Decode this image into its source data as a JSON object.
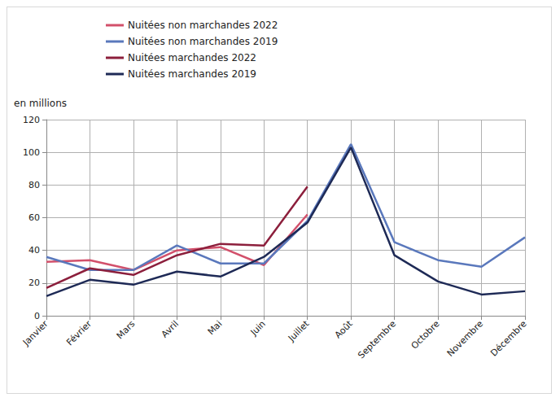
{
  "chart_data": {
    "type": "line",
    "y_label": "en millions",
    "categories": [
      "Janvier",
      "Février",
      "Mars",
      "Avril",
      "Mai",
      "Juin",
      "Juillet",
      "Août",
      "Septembre",
      "Octobre",
      "Novembre",
      "Décembre"
    ],
    "series": [
      {
        "name": "Nuitées non marchandes 2022",
        "color": "#d2506b",
        "values": [
          33,
          34,
          28,
          40,
          42,
          31,
          62,
          null,
          null,
          null,
          null,
          null
        ]
      },
      {
        "name": "Nuitées non marchandes 2019",
        "color": "#5a78bc",
        "values": [
          36,
          28,
          28,
          43,
          32,
          32,
          58,
          105,
          45,
          34,
          30,
          48
        ]
      },
      {
        "name": "Nuitées marchandes 2022",
        "color": "#8c1f3c",
        "values": [
          17,
          29,
          25,
          37,
          44,
          43,
          79,
          null,
          null,
          null,
          null,
          null
        ]
      },
      {
        "name": "Nuitées marchandes 2019",
        "color": "#1e2a56",
        "values": [
          12,
          22,
          19,
          27,
          24,
          36,
          57,
          103,
          37,
          21,
          13,
          15
        ]
      }
    ],
    "ylim": [
      0,
      120
    ],
    "yticks": [
      0,
      20,
      40,
      60,
      80,
      100,
      120
    ],
    "grid": true,
    "legend": "top-left"
  }
}
